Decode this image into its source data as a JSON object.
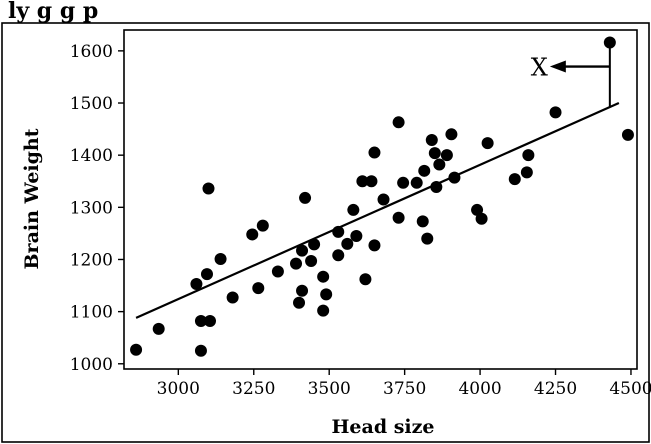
{
  "header": {
    "caption": "ly         g  g  p"
  },
  "chart_data": {
    "type": "scatter",
    "xlabel": "Head size",
    "ylabel": "Brain Weight",
    "xlim": [
      2820,
      4520
    ],
    "ylim": [
      990,
      1640
    ],
    "xticks": [
      3000,
      3250,
      3500,
      3750,
      4000,
      4250,
      4500
    ],
    "yticks": [
      1000,
      1100,
      1200,
      1300,
      1400,
      1500,
      1600
    ],
    "grid": false,
    "points": [
      {
        "x": 2860,
        "y": 1027
      },
      {
        "x": 2935,
        "y": 1067
      },
      {
        "x": 3060,
        "y": 1153
      },
      {
        "x": 3075,
        "y": 1082
      },
      {
        "x": 3075,
        "y": 1025
      },
      {
        "x": 3095,
        "y": 1172
      },
      {
        "x": 3100,
        "y": 1336
      },
      {
        "x": 3105,
        "y": 1082
      },
      {
        "x": 3140,
        "y": 1201
      },
      {
        "x": 3180,
        "y": 1127
      },
      {
        "x": 3245,
        "y": 1248
      },
      {
        "x": 3265,
        "y": 1145
      },
      {
        "x": 3280,
        "y": 1265
      },
      {
        "x": 3330,
        "y": 1177
      },
      {
        "x": 3390,
        "y": 1192
      },
      {
        "x": 3400,
        "y": 1117
      },
      {
        "x": 3410,
        "y": 1217
      },
      {
        "x": 3410,
        "y": 1140
      },
      {
        "x": 3420,
        "y": 1318
      },
      {
        "x": 3440,
        "y": 1197
      },
      {
        "x": 3450,
        "y": 1229
      },
      {
        "x": 3480,
        "y": 1167
      },
      {
        "x": 3480,
        "y": 1102
      },
      {
        "x": 3490,
        "y": 1133
      },
      {
        "x": 3530,
        "y": 1253
      },
      {
        "x": 3530,
        "y": 1208
      },
      {
        "x": 3560,
        "y": 1230
      },
      {
        "x": 3580,
        "y": 1295
      },
      {
        "x": 3590,
        "y": 1245
      },
      {
        "x": 3610,
        "y": 1350
      },
      {
        "x": 3620,
        "y": 1162
      },
      {
        "x": 3640,
        "y": 1350
      },
      {
        "x": 3650,
        "y": 1227
      },
      {
        "x": 3650,
        "y": 1405
      },
      {
        "x": 3680,
        "y": 1315
      },
      {
        "x": 3730,
        "y": 1463
      },
      {
        "x": 3730,
        "y": 1280
      },
      {
        "x": 3745,
        "y": 1347
      },
      {
        "x": 3790,
        "y": 1347
      },
      {
        "x": 3810,
        "y": 1273
      },
      {
        "x": 3815,
        "y": 1370
      },
      {
        "x": 3825,
        "y": 1240
      },
      {
        "x": 3840,
        "y": 1429
      },
      {
        "x": 3850,
        "y": 1404
      },
      {
        "x": 3855,
        "y": 1339
      },
      {
        "x": 3865,
        "y": 1382
      },
      {
        "x": 3890,
        "y": 1400
      },
      {
        "x": 3905,
        "y": 1440
      },
      {
        "x": 3915,
        "y": 1357
      },
      {
        "x": 3990,
        "y": 1295
      },
      {
        "x": 4005,
        "y": 1278
      },
      {
        "x": 4025,
        "y": 1423
      },
      {
        "x": 4115,
        "y": 1354
      },
      {
        "x": 4155,
        "y": 1367
      },
      {
        "x": 4160,
        "y": 1400
      },
      {
        "x": 4250,
        "y": 1482
      },
      {
        "x": 4430,
        "y": 1616
      },
      {
        "x": 4490,
        "y": 1439
      }
    ],
    "regression_line": {
      "x": [
        2860,
        4460
      ],
      "y": [
        1088,
        1500
      ]
    },
    "annotation": {
      "label": "X",
      "point": {
        "x": 4430,
        "y": 1616
      },
      "residual_to": {
        "x": 4430,
        "y": 1492
      },
      "arrow": "left"
    }
  }
}
